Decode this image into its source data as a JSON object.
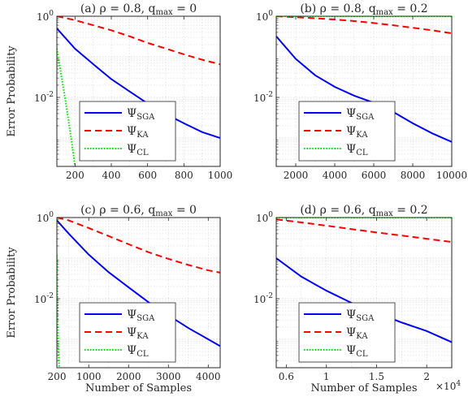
{
  "colors": {
    "sga": "#0000ff",
    "ka": "#ff0000",
    "cl": "#00e600",
    "axis": "#262626"
  },
  "chart_data": [
    {
      "type": "line",
      "title": "(a)  ρ = 0.8, q",
      "title_sub": "max",
      "title_tail": " = 0",
      "xlabel": "",
      "ylabel": "Error Probability",
      "xlim": [
        100,
        1000
      ],
      "ylim_exp": [
        -3.7,
        0
      ],
      "yscale": "log",
      "grid": true,
      "xticks": [
        200,
        400,
        600,
        800,
        1000
      ],
      "xtick_labels": [
        "200",
        "400",
        "600",
        "800",
        "1000"
      ],
      "x_exponent": "",
      "legend": "bottom-left",
      "series": [
        {
          "name": "Ψ",
          "sub": "SGA",
          "style": "solid",
          "color_key": "sga",
          "x": [
            100,
            200,
            300,
            400,
            500,
            600,
            700,
            800,
            900,
            1000
          ],
          "y": [
            0.5,
            0.158,
            0.066,
            0.0282,
            0.0141,
            0.0071,
            0.0039,
            0.0023,
            0.0014,
            0.001
          ]
        },
        {
          "name": "Ψ",
          "sub": "KA",
          "style": "dashed",
          "color_key": "ka",
          "x": [
            100,
            200,
            300,
            400,
            500,
            600,
            700,
            800,
            900,
            1000
          ],
          "y": [
            1.0,
            0.8,
            0.6,
            0.45,
            0.32,
            0.22,
            0.16,
            0.115,
            0.085,
            0.065
          ]
        },
        {
          "name": "Ψ",
          "sub": "CL",
          "style": "dotted",
          "color_key": "cl",
          "x": [
            100,
            150,
            180,
            200
          ],
          "y": [
            0.16,
            0.007,
            0.0009,
            0.0002
          ]
        }
      ]
    },
    {
      "type": "line",
      "title": "(b)  ρ = 0.8, q",
      "title_sub": "max",
      "title_tail": " = 0.2",
      "xlabel": "",
      "ylabel": "",
      "xlim": [
        1000,
        10000
      ],
      "ylim_exp": [
        -3.7,
        0
      ],
      "yscale": "log",
      "grid": true,
      "xticks": [
        2000,
        4000,
        6000,
        8000,
        10000
      ],
      "xtick_labels": [
        "2000",
        "4000",
        "6000",
        "8000",
        "10000"
      ],
      "x_exponent": "",
      "legend": "bottom-left",
      "series": [
        {
          "name": "Ψ",
          "sub": "SGA",
          "style": "solid",
          "color_key": "sga",
          "x": [
            1000,
            2000,
            3000,
            4000,
            5000,
            6000,
            7000,
            8000,
            9000,
            10000
          ],
          "y": [
            0.32,
            0.089,
            0.035,
            0.0182,
            0.011,
            0.0074,
            0.0044,
            0.0023,
            0.0013,
            0.0008
          ]
        },
        {
          "name": "Ψ",
          "sub": "KA",
          "style": "dashed",
          "color_key": "ka",
          "x": [
            1000,
            2000,
            3000,
            4000,
            5000,
            6000,
            7000,
            8000,
            9000,
            10000
          ],
          "y": [
            1.0,
            0.95,
            0.89,
            0.83,
            0.76,
            0.68,
            0.6,
            0.52,
            0.45,
            0.38
          ]
        },
        {
          "name": "Ψ",
          "sub": "CL",
          "style": "dotted",
          "color_key": "cl",
          "x": [
            1000,
            10000
          ],
          "y": [
            1.0,
            1.0
          ]
        }
      ]
    },
    {
      "type": "line",
      "title": "(c)  ρ = 0.6, q",
      "title_sub": "max",
      "title_tail": " = 0",
      "xlabel": "Number of Samples",
      "ylabel": "Error Probability",
      "xlim": [
        200,
        4300
      ],
      "ylim_exp": [
        -3.7,
        0
      ],
      "yscale": "log",
      "grid": true,
      "xticks": [
        200,
        1000,
        2000,
        3000,
        4000
      ],
      "xtick_labels": [
        "200",
        "1000",
        "2000",
        "3000",
        "4000"
      ],
      "x_exponent": "",
      "legend": "bottom-left",
      "series": [
        {
          "name": "Ψ",
          "sub": "SGA",
          "style": "solid",
          "color_key": "sga",
          "x": [
            200,
            500,
            1000,
            1500,
            2000,
            2500,
            3000,
            3500,
            4000,
            4300
          ],
          "y": [
            0.85,
            0.4,
            0.122,
            0.045,
            0.0191,
            0.0082,
            0.0039,
            0.0019,
            0.001,
            0.00068
          ]
        },
        {
          "name": "Ψ",
          "sub": "KA",
          "style": "dashed",
          "color_key": "ka",
          "x": [
            200,
            500,
            1000,
            1500,
            2000,
            2500,
            3000,
            3500,
            4000,
            4300
          ],
          "y": [
            1.0,
            0.85,
            0.55,
            0.35,
            0.22,
            0.14,
            0.096,
            0.068,
            0.05,
            0.044
          ]
        },
        {
          "name": "Ψ",
          "sub": "CL",
          "style": "dotted",
          "color_key": "cl",
          "x": [
            200,
            220,
            240,
            260
          ],
          "y": [
            0.12,
            0.004,
            0.0005,
            0.0002
          ]
        }
      ]
    },
    {
      "type": "line",
      "title": "(d)  ρ = 0.6, q",
      "title_sub": "max",
      "title_tail": " = 0.2",
      "xlabel": "Number of Samples",
      "ylabel": "",
      "xlim": [
        5000,
        22500
      ],
      "ylim_exp": [
        -3.7,
        0
      ],
      "yscale": "log",
      "grid": true,
      "xticks": [
        6000,
        10000,
        15000,
        20000
      ],
      "xtick_labels": [
        "0.6",
        "1",
        "1.5",
        "2"
      ],
      "x_exponent": "4",
      "legend": "bottom-left",
      "series": [
        {
          "name": "Ψ",
          "sub": "SGA",
          "style": "solid",
          "color_key": "sga",
          "x": [
            5000,
            7500,
            10000,
            12500,
            15000,
            17500,
            20000,
            22500
          ],
          "y": [
            0.1,
            0.035,
            0.0158,
            0.0079,
            0.0045,
            0.0026,
            0.0016,
            0.00085
          ]
        },
        {
          "name": "Ψ",
          "sub": "KA",
          "style": "dashed",
          "color_key": "ka",
          "x": [
            5000,
            7500,
            10000,
            12500,
            15000,
            17500,
            20000,
            22500
          ],
          "y": [
            0.9,
            0.76,
            0.63,
            0.52,
            0.43,
            0.36,
            0.3,
            0.25
          ]
        },
        {
          "name": "Ψ",
          "sub": "CL",
          "style": "dotted",
          "color_key": "cl",
          "x": [
            5000,
            22500
          ],
          "y": [
            1.0,
            1.0
          ]
        }
      ]
    }
  ],
  "labels": {
    "ytick_top": "10",
    "ytick_top_exp": "0",
    "ytick_mid": "10",
    "ytick_mid_exp": "-2",
    "x_exp_prefix": "×10"
  }
}
